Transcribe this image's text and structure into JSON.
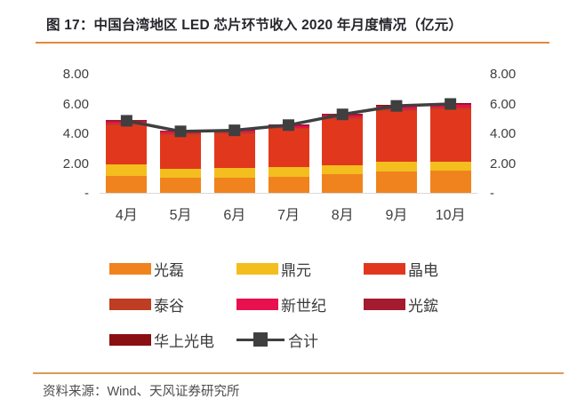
{
  "header": {
    "title": "图 17：中国台湾地区 LED 芯片环节收入 2020 年月度情况（亿元）"
  },
  "footer": {
    "source": "资料来源：Wind、天风证券研究所"
  },
  "colors": {
    "accent_rule": "#E8873A",
    "axis_text": "#3F3F3F",
    "baseline": "#D9D9D9",
    "total_line": "#3F3F3F"
  },
  "chart_data": {
    "type": "bar",
    "subtype": "stacked-bars-with-total-line",
    "title": "中国台湾地区 LED 芯片环节收入 2020 年月度情况（亿元）",
    "categories": [
      "4月",
      "5月",
      "6月",
      "7月",
      "8月",
      "9月",
      "10月"
    ],
    "series": [
      {
        "name": "光磊",
        "color": "#F0831E",
        "values": [
          1.15,
          1.0,
          1.02,
          1.08,
          1.25,
          1.45,
          1.5
        ]
      },
      {
        "name": "鼎元",
        "color": "#F3BE1E",
        "values": [
          0.78,
          0.62,
          0.63,
          0.68,
          0.6,
          0.62,
          0.6
        ]
      },
      {
        "name": "晶电",
        "color": "#E1381D",
        "values": [
          2.62,
          2.28,
          2.32,
          2.52,
          3.1,
          3.4,
          3.5
        ]
      },
      {
        "name": "泰谷",
        "color": "#BF3D22",
        "values": [
          0.1,
          0.08,
          0.08,
          0.09,
          0.1,
          0.12,
          0.12
        ]
      },
      {
        "name": "新世纪",
        "color": "#E8104E",
        "values": [
          0.15,
          0.12,
          0.12,
          0.14,
          0.16,
          0.18,
          0.18
        ]
      },
      {
        "name": "光鋐",
        "color": "#A41A2F",
        "values": [
          0.08,
          0.07,
          0.07,
          0.08,
          0.09,
          0.1,
          0.1
        ]
      },
      {
        "name": "华上光电",
        "color": "#8A0F13",
        "values": [
          0.02,
          0.02,
          0.02,
          0.02,
          0.03,
          0.03,
          0.03
        ]
      }
    ],
    "line_series": {
      "name": "合计",
      "color": "#3F3F3F",
      "values": [
        4.9,
        4.19,
        4.26,
        4.61,
        5.33,
        5.9,
        6.03
      ]
    },
    "yaxis": {
      "ticks": [
        "8.00",
        "6.00",
        "4.00",
        "2.00",
        "-"
      ],
      "tick_values": [
        8,
        6,
        4,
        2,
        0
      ],
      "ylim": [
        0,
        8
      ],
      "sides": "both"
    },
    "xlabel": "",
    "ylabel": "",
    "grid": false,
    "legend_position": "bottom",
    "legend_rows": [
      [
        "光磊",
        "鼎元",
        "晶电"
      ],
      [
        "泰谷",
        "新世纪",
        "光鋐"
      ],
      [
        "华上光电",
        "合计"
      ]
    ]
  }
}
